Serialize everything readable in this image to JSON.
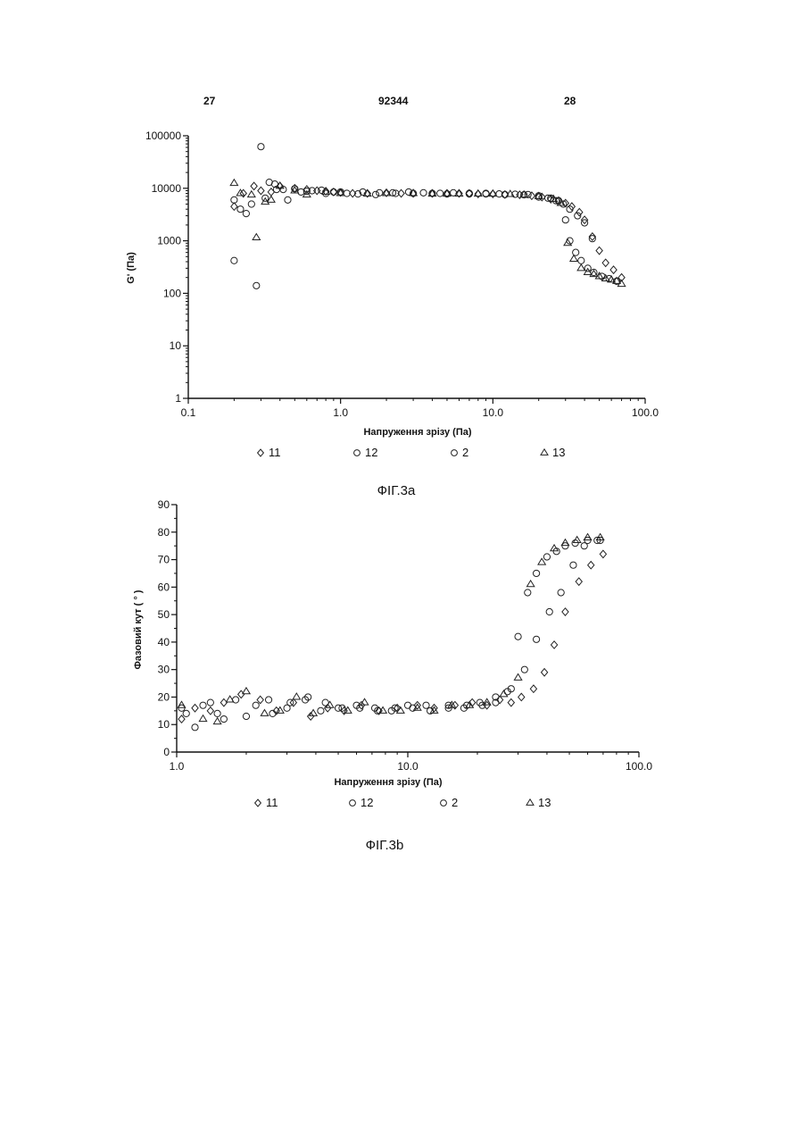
{
  "header": {
    "left": "27",
    "center": "92344",
    "right": "28"
  },
  "charts": [
    {
      "caption": "ФІГ.3а",
      "chart_data": {
        "type": "scatter",
        "xlabel": "Напруження зрізу (Па)",
        "ylabel": "G'  (Па)",
        "xscale": "log",
        "yscale": "log",
        "xlim": [
          0.1,
          100.0
        ],
        "ylim": [
          1,
          100000
        ],
        "xticks": [
          0.1,
          1.0,
          10.0,
          100.0
        ],
        "xtick_labels": [
          "0.1",
          "1.0",
          "10.0",
          "100.0"
        ],
        "yticks": [
          1,
          10,
          100,
          1000,
          10000,
          100000
        ],
        "ytick_labels": [
          "1",
          "10",
          "100",
          "1000",
          "10000",
          "100000"
        ],
        "grid": false,
        "legend_position": "bottom",
        "legend": [
          {
            "marker": "diamond",
            "label": "11"
          },
          {
            "marker": "circle",
            "label": "12"
          },
          {
            "marker": "circle",
            "label": "2"
          },
          {
            "marker": "triangle",
            "label": "13"
          }
        ],
        "series": [
          {
            "name": "11",
            "marker": "diamond",
            "x": [
              0.2,
              0.23,
              0.27,
              0.3,
              0.35,
              0.4,
              0.5,
              0.6,
              0.7,
              0.8,
              0.9,
              1.0,
              1.2,
              1.5,
              2.0,
              2.5,
              3.0,
              4.0,
              5.0,
              6.0,
              7.0,
              8.0,
              10.0,
              12.0,
              15.0,
              18.0,
              21.0,
              24.0,
              27.0,
              30.0,
              33.0,
              37.0,
              40.0,
              45.0,
              50.0,
              55.0,
              62.0,
              70.0
            ],
            "y": [
              4500,
              8000,
              11000,
              9000,
              8500,
              11000,
              10000,
              9500,
              9000,
              8800,
              8500,
              8300,
              8000,
              8000,
              8200,
              8000,
              8000,
              8000,
              8000,
              8000,
              8000,
              7800,
              7800,
              7600,
              7500,
              7200,
              6800,
              6200,
              5800,
              5200,
              4500,
              3500,
              2500,
              1200,
              650,
              380,
              280,
              200
            ]
          },
          {
            "name": "12",
            "marker": "circle",
            "x": [
              0.2,
              0.24,
              0.28,
              0.3,
              0.34,
              0.38,
              0.45,
              0.55,
              0.65,
              0.8,
              1.0,
              1.3,
              1.7,
              2.2,
              3.0,
              4.0,
              5.0,
              7.0,
              9.0,
              12.0,
              16.0,
              20.0,
              24.0,
              27.0,
              30.0,
              32.0,
              35.0,
              38.0,
              42.0,
              46.0,
              52.0,
              58.0,
              65.0
            ],
            "y": [
              420,
              3300,
              140,
              62000,
              13000,
              9500,
              6000,
              8500,
              9000,
              8000,
              8500,
              7800,
              7600,
              8200,
              8000,
              8000,
              7800,
              7800,
              7800,
              7600,
              7500,
              6800,
              6500,
              5800,
              2500,
              1000,
              600,
              420,
              300,
              250,
              210,
              190,
              170
            ]
          },
          {
            "name": "2",
            "marker": "circle",
            "x": [
              0.2,
              0.22,
              0.26,
              0.32,
              0.37,
              0.42,
              0.5,
              0.6,
              0.75,
              0.9,
              1.1,
              1.4,
              1.8,
              2.3,
              2.8,
              3.5,
              4.5,
              5.5,
              7.0,
              9.0,
              11.0,
              14.0,
              17.0,
              20.0,
              23.0,
              26.0,
              29.0,
              32.0,
              36.0,
              40.0,
              45.0
            ],
            "y": [
              6000,
              4000,
              5000,
              6500,
              12000,
              9500,
              9800,
              8800,
              9200,
              8500,
              8000,
              8500,
              8200,
              8000,
              8500,
              8200,
              8000,
              8200,
              8000,
              8000,
              7800,
              7700,
              7600,
              7200,
              6500,
              5800,
              5000,
              4000,
              3000,
              2200,
              1100
            ]
          },
          {
            "name": "13",
            "marker": "triangle",
            "x": [
              0.2,
              0.22,
              0.26,
              0.28,
              0.32,
              0.35,
              0.4,
              0.5,
              0.6,
              0.8,
              1.0,
              1.5,
              2.0,
              3.0,
              4.0,
              5.0,
              6.0,
              8.0,
              10.0,
              13.0,
              16.0,
              20.0,
              25.0,
              28.0,
              31.0,
              34.0,
              38.0,
              42.0,
              46.0,
              50.0,
              55.0,
              60.0,
              65.0,
              70.0
            ],
            "y": [
              12500,
              8000,
              7500,
              1150,
              5500,
              6000,
              11000,
              9000,
              7500,
              8500,
              8000,
              7800,
              8000,
              8000,
              7800,
              7800,
              7800,
              7800,
              7800,
              7700,
              7500,
              7000,
              6200,
              5200,
              900,
              450,
              300,
              250,
              230,
              210,
              190,
              180,
              170,
              150
            ]
          }
        ]
      }
    },
    {
      "caption": "ФІГ.3b",
      "chart_data": {
        "type": "scatter",
        "xlabel": "Напруження зрізу (Па)",
        "ylabel": "Фазовий кут  ( ° )",
        "xscale": "log",
        "yscale": "linear",
        "xlim": [
          1.0,
          100.0
        ],
        "ylim": [
          0,
          90
        ],
        "xticks": [
          1.0,
          10.0,
          100.0
        ],
        "xtick_labels": [
          "1.0",
          "10.0",
          "100.0"
        ],
        "yticks": [
          0,
          10,
          20,
          30,
          40,
          50,
          60,
          70,
          80,
          90
        ],
        "ytick_labels": [
          "0",
          "10",
          "20",
          "30",
          "40",
          "50",
          "60",
          "70",
          "80",
          "90"
        ],
        "grid": false,
        "legend_position": "bottom",
        "legend": [
          {
            "marker": "diamond",
            "label": "11"
          },
          {
            "marker": "circle",
            "label": "12"
          },
          {
            "marker": "circle",
            "label": "2"
          },
          {
            "marker": "triangle",
            "label": "13"
          }
        ],
        "series": [
          {
            "name": "11",
            "marker": "diamond",
            "x": [
              1.05,
              1.2,
              1.4,
              1.6,
              1.9,
              2.3,
              2.7,
              3.2,
              3.8,
              4.5,
              5.3,
              6.3,
              7.5,
              9.0,
              11.0,
              13.0,
              16.0,
              19.0,
              22.0,
              25.0,
              28.0,
              31.0,
              35.0,
              39.0,
              43.0,
              48.0,
              55.0,
              62.0,
              70.0
            ],
            "y": [
              12,
              16,
              15,
              18,
              21,
              19,
              15,
              18,
              13,
              16,
              15,
              17,
              15,
              16,
              17,
              16,
              17,
              18,
              17,
              19,
              18,
              20,
              23,
              29,
              39,
              51,
              62,
              68,
              72
            ]
          },
          {
            "name": "12",
            "marker": "circle",
            "x": [
              1.05,
              1.2,
              1.4,
              1.6,
              2.0,
              2.5,
              3.0,
              3.6,
              4.2,
              5.0,
              6.0,
              7.2,
              8.5,
              10.0,
              12.0,
              15.0,
              18.0,
              21.0,
              24.0,
              27.0,
              30.0,
              33.0,
              36.0,
              40.0,
              44.0,
              48.0,
              53.0,
              60.0,
              68.0
            ],
            "y": [
              16,
              9,
              18,
              12,
              13,
              19,
              16,
              19,
              15,
              16,
              17,
              16,
              15,
              17,
              17,
              16,
              17,
              17,
              18,
              22,
              42,
              58,
              65,
              71,
              73,
              75,
              76,
              77,
              77
            ]
          },
          {
            "name": "2",
            "marker": "circle",
            "x": [
              1.1,
              1.3,
              1.5,
              1.8,
              2.2,
              2.6,
              3.1,
              3.7,
              4.4,
              5.2,
              6.2,
              7.4,
              8.8,
              10.5,
              12.5,
              15.0,
              17.5,
              20.5,
              24.0,
              28.0,
              32.0,
              36.0,
              41.0,
              46.0,
              52.0,
              58.0,
              66.0
            ],
            "y": [
              14,
              17,
              14,
              19,
              17,
              14,
              18,
              20,
              18,
              16,
              16,
              15,
              16,
              16,
              15,
              17,
              16,
              18,
              20,
              23,
              30,
              41,
              51,
              58,
              68,
              75,
              77
            ]
          },
          {
            "name": "13",
            "marker": "triangle",
            "x": [
              1.05,
              1.3,
              1.5,
              1.7,
              2.0,
              2.4,
              2.8,
              3.3,
              3.9,
              4.6,
              5.5,
              6.5,
              7.8,
              9.3,
              11.0,
              13.0,
              15.5,
              18.5,
              22.0,
              26.0,
              30.0,
              34.0,
              38.0,
              43.0,
              48.0,
              54.0,
              60.0,
              68.0
            ],
            "y": [
              17,
              12,
              11,
              19,
              22,
              14,
              15,
              20,
              14,
              17,
              15,
              18,
              15,
              15,
              16,
              15,
              17,
              17,
              18,
              21,
              27,
              61,
              69,
              74,
              76,
              77,
              78,
              78
            ]
          }
        ]
      }
    }
  ]
}
